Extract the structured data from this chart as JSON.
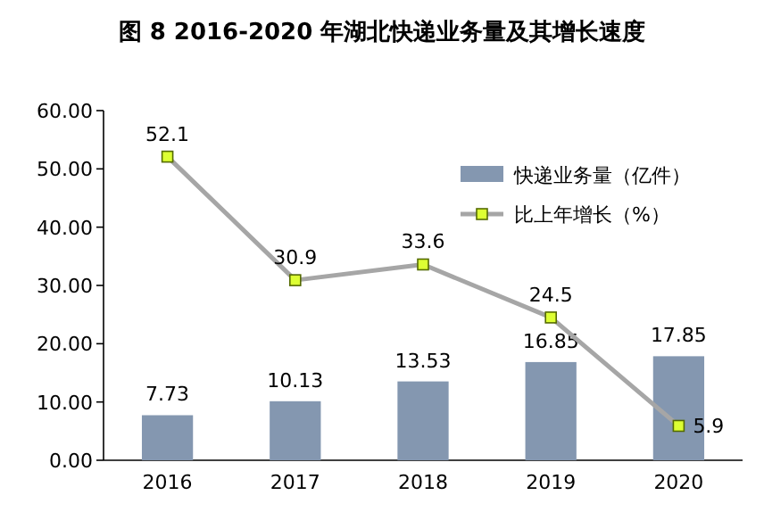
{
  "chart_data": {
    "type": "bar",
    "title": "图 8 2016-2020 年湖北快递业务量及其增长速度",
    "categories": [
      "2016",
      "2017",
      "2018",
      "2019",
      "2020"
    ],
    "series": [
      {
        "name": "快递业务量（亿件）",
        "color": "#8497b0",
        "values": [
          7.73,
          10.13,
          13.53,
          16.85,
          17.85
        ]
      },
      {
        "name": "比上年增长（%）",
        "type": "line",
        "color": "#a6a6a6",
        "marker": "square",
        "line_style": "solid",
        "values": [
          52.1,
          30.9,
          33.6,
          24.5,
          5.9
        ]
      }
    ],
    "ylim": [
      0,
      60
    ],
    "yticks": [
      {
        "value": 0,
        "label": "0.00"
      },
      {
        "value": 10,
        "label": "10.00"
      },
      {
        "value": 20,
        "label": "20.00"
      },
      {
        "value": 30,
        "label": "30.00"
      },
      {
        "value": 40,
        "label": "40.00"
      },
      {
        "value": 50,
        "label": "50.00"
      },
      {
        "value": 60,
        "label": "60.00"
      }
    ],
    "data_labels": true,
    "grid": false,
    "legend": "top right"
  }
}
